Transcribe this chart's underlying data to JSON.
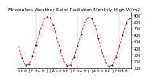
{
  "title": "Milwaukee Weather Solar Radiation Monthly High W/m2",
  "months_labels": [
    "O",
    "N",
    "D",
    "J",
    "F",
    "M",
    "A",
    "M",
    "J",
    "J",
    "A",
    "S",
    "O",
    "N",
    "D",
    "J",
    "F",
    "M",
    "A",
    "M",
    "J",
    "J",
    "A",
    "S",
    "O",
    "N",
    "D",
    "J",
    "F",
    "M",
    "A",
    "M",
    "J"
  ],
  "values": [
    430,
    250,
    140,
    160,
    280,
    450,
    620,
    800,
    880,
    870,
    760,
    560,
    380,
    200,
    130,
    150,
    270,
    440,
    610,
    790,
    870,
    860,
    750,
    550,
    360,
    190,
    125,
    145,
    265,
    430,
    600,
    780,
    860
  ],
  "n_points": 33,
  "line_color": "#ff0000",
  "marker_color": "#222222",
  "bg_color": "#ffffff",
  "grid_color": "#999999",
  "vline_positions": [
    5,
    17,
    29
  ],
  "ylim": [
    100,
    950
  ],
  "yticks": [
    100,
    200,
    300,
    400,
    500,
    600,
    700,
    800,
    900
  ],
  "ylabel_fontsize": 3.5,
  "title_fontsize": 4.2,
  "xlabel_fontsize": 3.0,
  "line_width": 0.6,
  "marker_size": 1.0
}
